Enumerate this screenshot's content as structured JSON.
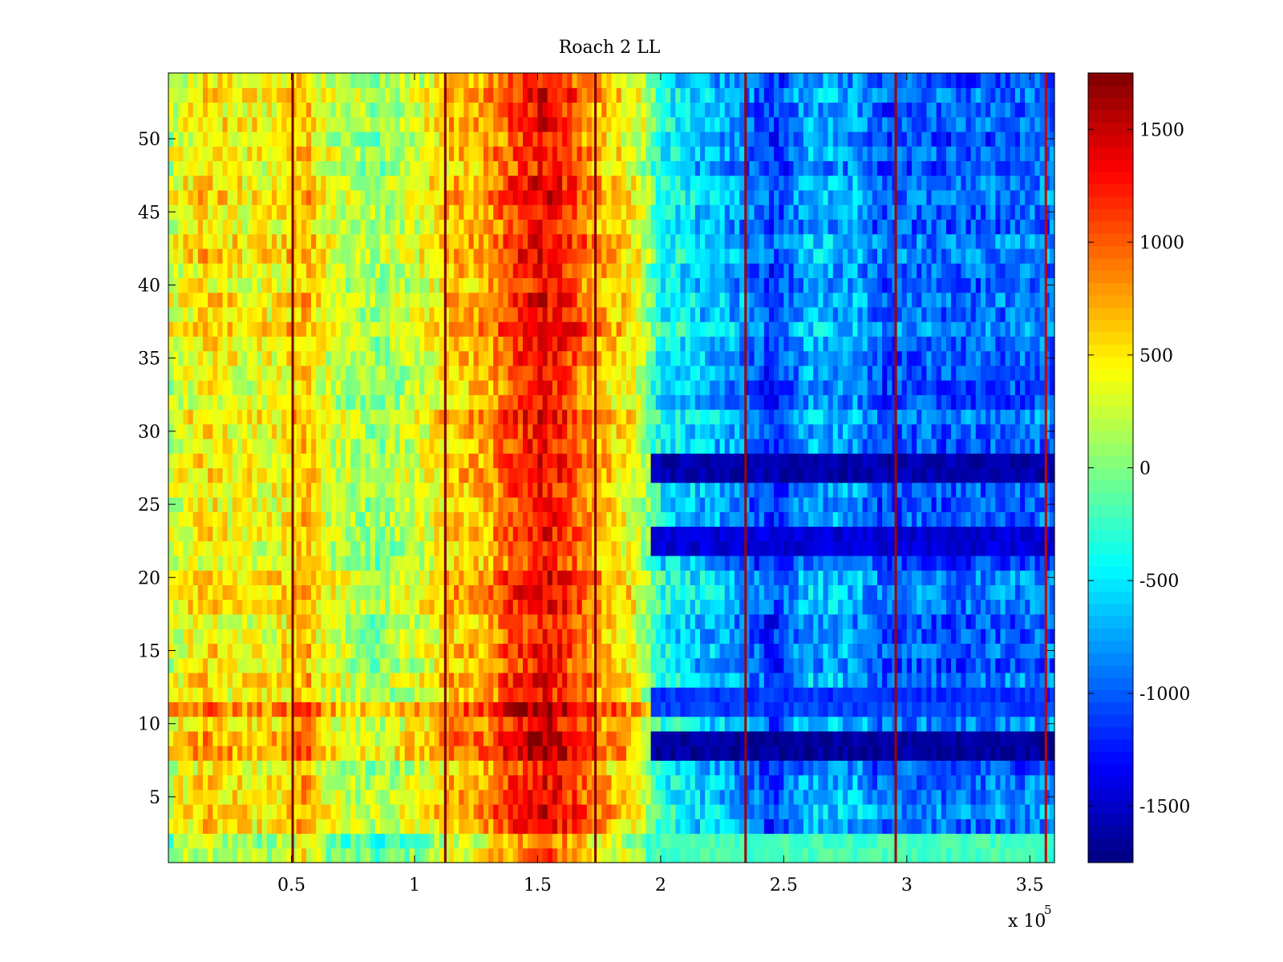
{
  "chart_data": {
    "type": "heatmap",
    "title": "Roach 2 LL",
    "xlabel": "",
    "ylabel": "",
    "x_multiplier_label": "x 10",
    "x_multiplier_exponent": "5",
    "xlim": [
      0,
      360000
    ],
    "ylim": [
      0.5,
      54.5
    ],
    "x_ticks": [
      0.5,
      1,
      1.5,
      2,
      2.5,
      3,
      3.5
    ],
    "x_tick_labels": [
      "0.5",
      "1",
      "1.5",
      "2",
      "2.5",
      "3",
      "3.5"
    ],
    "y_ticks": [
      5,
      10,
      15,
      20,
      25,
      30,
      35,
      40,
      45,
      50
    ],
    "y_tick_labels": [
      "5",
      "10",
      "15",
      "20",
      "25",
      "30",
      "35",
      "40",
      "45",
      "50"
    ],
    "colormap": "jet",
    "colorbar": {
      "clim": [
        -1750,
        1750
      ],
      "ticks": [
        -1500,
        -1000,
        -500,
        0,
        500,
        1000,
        1500
      ],
      "tick_labels": [
        "-1500",
        "-1000",
        "-500",
        "0",
        "500",
        "1000",
        "1500"
      ]
    },
    "rows": 54,
    "x_profile_knots": [
      {
        "x": 0,
        "value": 250
      },
      {
        "x": 15000,
        "value": 550
      },
      {
        "x": 30000,
        "value": 400
      },
      {
        "x": 45000,
        "value": 450
      },
      {
        "x": 55000,
        "value": 700
      },
      {
        "x": 65000,
        "value": 300
      },
      {
        "x": 85000,
        "value": 80
      },
      {
        "x": 105000,
        "value": 350
      },
      {
        "x": 115000,
        "value": 650
      },
      {
        "x": 128000,
        "value": 700
      },
      {
        "x": 140000,
        "value": 1100
      },
      {
        "x": 152000,
        "value": 1350
      },
      {
        "x": 162000,
        "value": 1150
      },
      {
        "x": 172000,
        "value": 800
      },
      {
        "x": 185000,
        "value": 500
      },
      {
        "x": 192000,
        "value": 300
      },
      {
        "x": 200000,
        "value": -400
      },
      {
        "x": 215000,
        "value": -600
      },
      {
        "x": 230000,
        "value": -750
      },
      {
        "x": 245000,
        "value": -1150
      },
      {
        "x": 260000,
        "value": -700
      },
      {
        "x": 280000,
        "value": -750
      },
      {
        "x": 290000,
        "value": -1050
      },
      {
        "x": 300000,
        "value": -950
      },
      {
        "x": 320000,
        "value": -1000
      },
      {
        "x": 360000,
        "value": -900
      }
    ],
    "row_bands": [
      {
        "row_from": 27,
        "row_to": 28,
        "right_side_value": -1600,
        "left_side_shift": -100
      },
      {
        "row_from": 22,
        "row_to": 23,
        "right_side_value": -1450,
        "left_side_shift": -80
      },
      {
        "row_from": 8,
        "row_to": 9,
        "right_side_value": -1650,
        "left_side_shift": 200
      },
      {
        "row_from": 11,
        "row_to": 11,
        "right_side_value": -1100,
        "left_side_shift": 350
      },
      {
        "row_from": 12,
        "row_to": 12,
        "right_side_value": -1150,
        "left_side_shift": 0
      },
      {
        "row_from": 1,
        "row_to": 2,
        "right_side_value": -200,
        "left_side_shift": -300
      }
    ],
    "vertical_lines": [
      {
        "x": 50500,
        "value": 1750
      },
      {
        "x": 112500,
        "value": 1750
      },
      {
        "x": 173500,
        "value": 1750
      },
      {
        "x": 234500,
        "value": 1650
      },
      {
        "x": 295500,
        "value": 1650
      },
      {
        "x": 356500,
        "value": 1500
      }
    ]
  }
}
